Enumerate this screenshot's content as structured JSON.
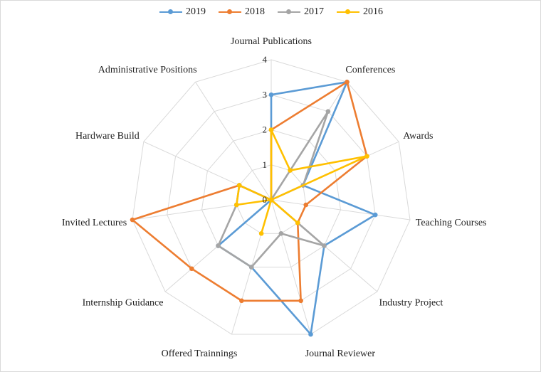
{
  "chart_data": {
    "type": "radar",
    "categories": [
      "Journal Publications",
      "Conferences",
      "Awards",
      "Teaching Courses",
      "Industry Project",
      "Journal Reviewer",
      "Offered Trainnings",
      "Internship Guidance",
      "Invited Lectures",
      "Hardware Build",
      "Administrative Positions"
    ],
    "ticks": [
      "0",
      "1",
      "2",
      "3",
      "4"
    ],
    "rlim": [
      0,
      4
    ],
    "legend_position": "top",
    "series": [
      {
        "name": "2019",
        "color": "#5b9bd5",
        "values": [
          3,
          4,
          1,
          3,
          2,
          4,
          2,
          2,
          0,
          1,
          0
        ]
      },
      {
        "name": "2018",
        "color": "#ed7d31",
        "values": [
          2,
          4,
          3,
          1,
          1,
          3,
          3,
          3,
          4,
          1,
          0
        ]
      },
      {
        "name": "2017",
        "color": "#a5a5a5",
        "values": [
          0,
          3,
          1,
          0,
          2,
          1,
          2,
          2,
          1,
          1,
          0
        ]
      },
      {
        "name": "2016",
        "color": "#ffc000",
        "values": [
          2,
          1,
          3,
          0,
          1,
          0,
          1,
          0,
          1,
          1,
          0
        ]
      }
    ]
  }
}
